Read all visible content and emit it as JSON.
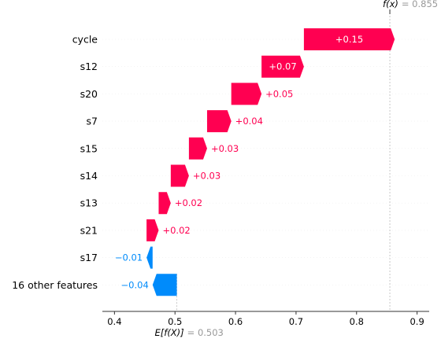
{
  "chart_data": {
    "type": "waterfall",
    "base_value": 0.503,
    "final_value": 0.855,
    "base_label": "E[f(X)]",
    "base_value_text": "= 0.503",
    "final_label": "f(x)",
    "final_value_text": "= 0.855",
    "xlim": [
      0.38,
      0.92
    ],
    "x_ticks": [
      0.4,
      0.5,
      0.6,
      0.7,
      0.8,
      0.9
    ],
    "x_tick_labels": [
      "0.4",
      "0.5",
      "0.6",
      "0.7",
      "0.8",
      "0.9"
    ],
    "features": [
      {
        "name": "cycle",
        "value": 0.15,
        "label": "+0.15"
      },
      {
        "name": "s12",
        "value": 0.07,
        "label": "+0.07"
      },
      {
        "name": "s20",
        "value": 0.05,
        "label": "+0.05"
      },
      {
        "name": "s7",
        "value": 0.04,
        "label": "+0.04"
      },
      {
        "name": "s15",
        "value": 0.03,
        "label": "+0.03"
      },
      {
        "name": "s14",
        "value": 0.03,
        "label": "+0.03"
      },
      {
        "name": "s13",
        "value": 0.02,
        "label": "+0.02"
      },
      {
        "name": "s21",
        "value": 0.02,
        "label": "+0.02"
      },
      {
        "name": "s17",
        "value": -0.01,
        "label": "−0.01"
      },
      {
        "name": "16 other features",
        "value": -0.04,
        "label": "−0.04"
      }
    ],
    "colors": {
      "positive": "#ff0051",
      "negative": "#008bfb",
      "axis": "#333333",
      "grid": "#cccccc",
      "value_text": "#999999"
    },
    "grid": false
  }
}
